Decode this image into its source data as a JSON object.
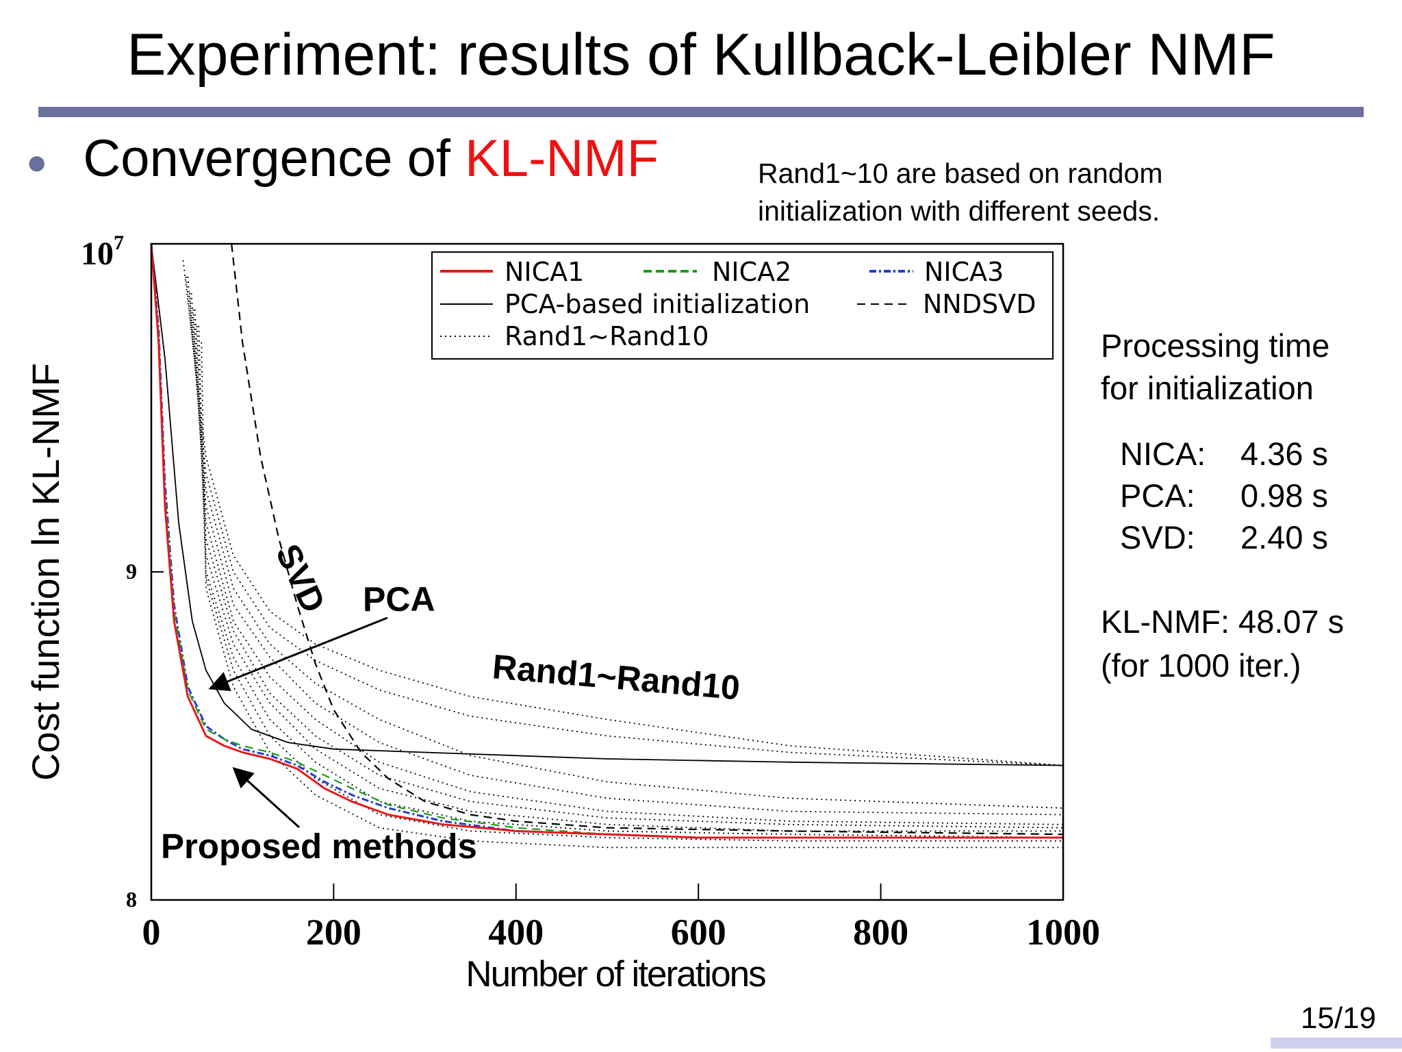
{
  "slide": {
    "title": "Experiment: results of Kullback-Leibler NMF",
    "bullet_prefix": "Convergence of ",
    "bullet_highlight": "KL-NMF",
    "note_line1": "Rand1~10 are based on random",
    "note_line2": "initialization with different seeds.",
    "side_title_line1": "Processing time",
    "side_title_line2": "for initialization",
    "times": [
      {
        "label": "NICA:",
        "value": "4.36 s"
      },
      {
        "label": "PCA:",
        "value": "0.98 s"
      },
      {
        "label": "SVD:",
        "value": "2.40 s"
      }
    ],
    "klnmf_line1": "KL-NMF: 48.07 s",
    "klnmf_line2": "(for 1000 iter.)",
    "page_number": "15/19"
  },
  "colors": {
    "accent_rule": "#6b6f9b",
    "highlight": "#ee1111",
    "nica1": "#e41a1c",
    "nica2": "#1a9a1a",
    "nica3": "#1f3fd0",
    "black": "#000000"
  },
  "chart_data": {
    "type": "line",
    "xlabel": "Number of iterations",
    "ylabel": "Cost function ln KL-NMF",
    "xlim": [
      0,
      1000
    ],
    "ylim": [
      8,
      10
    ],
    "y_scale": "log",
    "x_ticks": [
      "0",
      "200",
      "400",
      "600",
      "800",
      "1000"
    ],
    "y_ticks": [
      {
        "value": 8,
        "label": "8"
      },
      {
        "value": 9,
        "label": "9"
      },
      {
        "value": 10,
        "base": "10",
        "exp": "7"
      }
    ],
    "legend_position": "top-right",
    "legend": [
      {
        "name": "NICA1",
        "style": "solid",
        "color": "#e41a1c"
      },
      {
        "name": "NICA2",
        "style": "dashed",
        "color": "#1a9a1a"
      },
      {
        "name": "NICA3",
        "style": "dashdot",
        "color": "#1f3fd0"
      },
      {
        "name": "PCA-based initialization",
        "style": "solid",
        "color": "#000000"
      },
      {
        "name": "NNDSVD",
        "style": "dashed",
        "color": "#000000"
      },
      {
        "name": "Rand1~Rand10",
        "style": "dotted",
        "color": "#000000"
      }
    ],
    "annotations": [
      "SVD",
      "PCA",
      "Rand1~Rand10",
      "Proposed methods"
    ],
    "series": [
      {
        "legend_index": 0,
        "x": [
          0,
          8,
          15,
          25,
          40,
          60,
          80,
          100,
          130,
          160,
          190,
          220,
          260,
          320,
          400,
          500,
          600,
          800,
          1000
        ],
        "y": [
          10,
          9.7,
          9.2,
          8.85,
          8.62,
          8.5,
          8.47,
          8.45,
          8.43,
          8.4,
          8.34,
          8.3,
          8.26,
          8.23,
          8.21,
          8.2,
          8.19,
          8.19,
          8.19
        ]
      },
      {
        "legend_index": 1,
        "x": [
          0,
          8,
          15,
          25,
          40,
          60,
          80,
          100,
          130,
          160,
          190,
          220,
          260,
          320,
          400,
          500,
          600,
          800,
          1000
        ],
        "y": [
          10,
          9.72,
          9.24,
          8.88,
          8.64,
          8.52,
          8.49,
          8.47,
          8.45,
          8.42,
          8.38,
          8.34,
          8.29,
          8.25,
          8.22,
          8.2,
          8.19,
          8.19,
          8.19
        ]
      },
      {
        "legend_index": 2,
        "x": [
          0,
          8,
          15,
          25,
          40,
          60,
          80,
          100,
          130,
          160,
          190,
          220,
          260,
          320,
          400,
          500,
          600,
          800,
          1000
        ],
        "y": [
          10,
          9.74,
          9.27,
          8.9,
          8.65,
          8.53,
          8.49,
          8.46,
          8.44,
          8.41,
          8.36,
          8.32,
          8.28,
          8.24,
          8.21,
          8.2,
          8.19,
          8.19,
          8.19
        ]
      },
      {
        "legend_index": 3,
        "x": [
          0,
          15,
          30,
          45,
          60,
          80,
          110,
          150,
          200,
          300,
          500,
          700,
          1000
        ],
        "y": [
          10,
          9.65,
          9.15,
          8.85,
          8.7,
          8.6,
          8.52,
          8.48,
          8.46,
          8.45,
          8.43,
          8.42,
          8.41
        ]
      },
      {
        "legend_index": 4,
        "x": [
          88,
          100,
          120,
          140,
          160,
          180,
          200,
          230,
          260,
          300,
          350,
          400,
          500,
          700,
          1000
        ],
        "y": [
          10,
          9.7,
          9.35,
          9.1,
          8.9,
          8.72,
          8.58,
          8.45,
          8.37,
          8.3,
          8.26,
          8.24,
          8.22,
          8.21,
          8.2
        ]
      },
      {
        "legend_index": 5,
        "x": [
          35,
          60,
          90,
          130,
          180,
          250,
          350,
          500,
          700,
          1000
        ],
        "y": [
          9.95,
          9.35,
          9.05,
          8.88,
          8.78,
          8.7,
          8.62,
          8.55,
          8.47,
          8.41
        ]
      },
      {
        "legend_index": 5,
        "x": [
          38,
          60,
          90,
          130,
          180,
          250,
          350,
          500,
          700,
          1000
        ],
        "y": [
          9.9,
          9.3,
          9.0,
          8.83,
          8.73,
          8.64,
          8.56,
          8.5,
          8.45,
          8.41
        ]
      },
      {
        "legend_index": 5,
        "x": [
          40,
          60,
          90,
          130,
          180,
          250,
          350,
          500,
          700,
          1000
        ],
        "y": [
          9.9,
          9.25,
          8.95,
          8.78,
          8.66,
          8.55,
          8.44,
          8.36,
          8.31,
          8.28
        ]
      },
      {
        "legend_index": 5,
        "x": [
          42,
          60,
          90,
          130,
          180,
          250,
          350,
          500,
          700,
          1000
        ],
        "y": [
          9.85,
          9.2,
          8.9,
          8.74,
          8.6,
          8.48,
          8.38,
          8.31,
          8.27,
          8.26
        ]
      },
      {
        "legend_index": 5,
        "x": [
          44,
          60,
          90,
          130,
          180,
          250,
          350,
          500,
          700,
          1000
        ],
        "y": [
          9.85,
          9.15,
          8.85,
          8.68,
          8.55,
          8.42,
          8.33,
          8.27,
          8.24,
          8.23
        ]
      },
      {
        "legend_index": 5,
        "x": [
          46,
          60,
          90,
          130,
          180,
          250,
          350,
          500,
          700,
          1000
        ],
        "y": [
          9.8,
          9.1,
          8.82,
          8.63,
          8.5,
          8.38,
          8.3,
          8.25,
          8.23,
          8.22
        ]
      },
      {
        "legend_index": 5,
        "x": [
          48,
          60,
          90,
          130,
          180,
          250,
          350,
          500,
          700,
          1000
        ],
        "y": [
          9.8,
          9.05,
          8.78,
          8.6,
          8.46,
          8.34,
          8.27,
          8.23,
          8.21,
          8.21
        ]
      },
      {
        "legend_index": 5,
        "x": [
          50,
          60,
          90,
          130,
          180,
          250,
          350,
          500,
          700,
          1000
        ],
        "y": [
          9.75,
          9.0,
          8.74,
          8.55,
          8.42,
          8.3,
          8.24,
          8.21,
          8.2,
          8.19
        ]
      },
      {
        "legend_index": 5,
        "x": [
          52,
          60,
          90,
          130,
          180,
          250,
          350,
          500,
          700,
          1000
        ],
        "y": [
          9.75,
          8.98,
          8.7,
          8.5,
          8.37,
          8.26,
          8.21,
          8.19,
          8.18,
          8.18
        ]
      },
      {
        "legend_index": 5,
        "x": [
          55,
          60,
          90,
          130,
          180,
          250,
          350,
          500,
          700,
          1000
        ],
        "y": [
          9.7,
          8.95,
          8.65,
          8.45,
          8.32,
          8.22,
          8.18,
          8.16,
          8.16,
          8.16
        ]
      }
    ]
  }
}
